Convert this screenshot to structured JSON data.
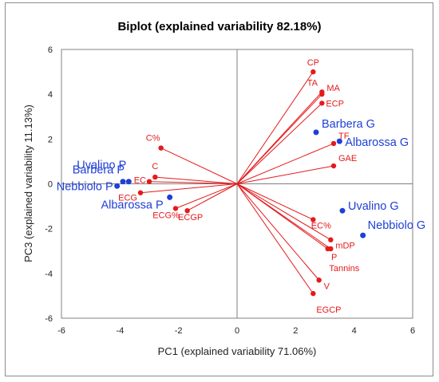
{
  "chart_data": {
    "type": "scatter",
    "title": "Biplot (explained variability 82.18%)",
    "xlabel": "PC1 (explained variability 71.06%)",
    "ylabel": "PC3 (explained variability 11.13%)",
    "xlim": [
      -6,
      6
    ],
    "ylim": [
      -6,
      6
    ],
    "xticks": [
      -6,
      -4,
      -2,
      0,
      2,
      4,
      6
    ],
    "yticks": [
      -6,
      -4,
      -2,
      0,
      2,
      4,
      6
    ],
    "grid": false,
    "colors": {
      "variables": "#e41a1c",
      "observations": "#1f3fd6",
      "axes": "#808080"
    },
    "series": [
      {
        "name": "",
        "kind": "variables",
        "points": [
          {
            "label": "CP",
            "x": 2.6,
            "y": 5.0
          },
          {
            "label": "TA",
            "x": 2.9,
            "y": 4.1
          },
          {
            "label": "MA",
            "x": 2.9,
            "y": 4.0
          },
          {
            "label": "ECP",
            "x": 2.9,
            "y": 3.6
          },
          {
            "label": "TF",
            "x": 3.3,
            "y": 1.8
          },
          {
            "label": "GAE",
            "x": 3.3,
            "y": 0.8
          },
          {
            "label": "C%",
            "x": -2.6,
            "y": 1.6
          },
          {
            "label": "C",
            "x": -2.8,
            "y": 0.3
          },
          {
            "label": "EC",
            "x": -3.0,
            "y": 0.1
          },
          {
            "label": "ECG",
            "x": -3.3,
            "y": -0.4
          },
          {
            "label": "ECG%",
            "x": -2.1,
            "y": -1.1
          },
          {
            "label": "ECGP",
            "x": -1.7,
            "y": -1.2
          },
          {
            "label": "EC%",
            "x": 2.6,
            "y": -1.6
          },
          {
            "label": "mDP",
            "x": 3.2,
            "y": -2.5
          },
          {
            "label": "P",
            "x": 3.1,
            "y": -2.9
          },
          {
            "label": "Tannins",
            "x": 3.2,
            "y": -2.9
          },
          {
            "label": "V",
            "x": 2.8,
            "y": -4.3
          },
          {
            "label": "EGCP",
            "x": 2.6,
            "y": -4.9
          }
        ]
      },
      {
        "name": "",
        "kind": "observations",
        "points": [
          {
            "label": "Barbera G",
            "x": 2.7,
            "y": 2.3
          },
          {
            "label": "Albarossa G",
            "x": 3.5,
            "y": 1.9
          },
          {
            "label": "Uvalino G",
            "x": 3.6,
            "y": -1.2
          },
          {
            "label": "Nebbiolo G",
            "x": 4.3,
            "y": -2.3
          },
          {
            "label": "Uvalino P",
            "x": -3.7,
            "y": 0.1
          },
          {
            "label": "Barbera P",
            "x": -3.9,
            "y": 0.1
          },
          {
            "label": "Nebbiolo P",
            "x": -4.1,
            "y": -0.1
          },
          {
            "label": "Albarossa P",
            "x": -2.3,
            "y": -0.6
          }
        ]
      }
    ]
  }
}
